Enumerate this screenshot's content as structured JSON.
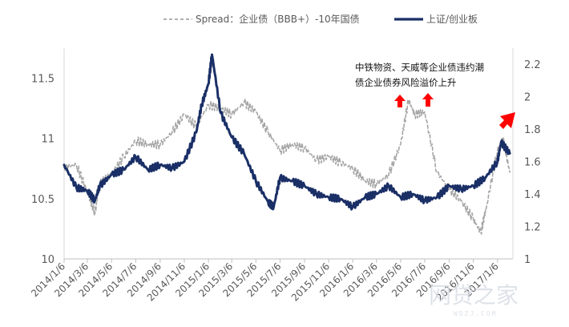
{
  "chart_data": {
    "type": "line",
    "title": "",
    "legend": {
      "placement": "top",
      "entries": [
        {
          "label": "Spread：企业债（BBB+）-10年国债",
          "style": "dashed",
          "color": "#a6a6a6"
        },
        {
          "label": "上证/创业板",
          "style": "solid",
          "color": "#1a2f66"
        }
      ]
    },
    "x_tick_labels": [
      "2014/1/6",
      "2014/3/6",
      "2014/5/6",
      "2014/7/6",
      "2014/9/6",
      "2014/11/6",
      "2015/1/6",
      "2015/3/6",
      "2015/5/6",
      "2015/7/6",
      "2015/9/6",
      "2015/11/6",
      "2016/1/6",
      "2016/3/6",
      "2016/5/6",
      "2016/7/6",
      "2016/9/6",
      "2016/11/6",
      "2017/1/6"
    ],
    "left_axis": {
      "ylim": [
        10,
        11.75
      ],
      "ticks": [
        "10",
        "10.5",
        "11",
        "11.5"
      ]
    },
    "right_axis": {
      "ylim": [
        1,
        2.3
      ],
      "ticks": [
        "1",
        "1.2",
        "1.4",
        "1.6",
        "1.8",
        "2",
        "2.2"
      ]
    },
    "series": [
      {
        "name": "Spread：企业债（BBB+）-10年国债",
        "axis": "left",
        "color": "#a6a6a6",
        "style": "dashed",
        "x": [
          "2014/1/6",
          "2014/2/6",
          "2014/3/6",
          "2014/3/25",
          "2014/4/6",
          "2014/5/6",
          "2014/6/6",
          "2014/7/6",
          "2014/8/6",
          "2014/9/6",
          "2014/10/6",
          "2014/11/6",
          "2014/12/6",
          "2015/1/6",
          "2015/2/6",
          "2015/3/6",
          "2015/4/6",
          "2015/5/6",
          "2015/6/6",
          "2015/7/6",
          "2015/8/6",
          "2015/9/6",
          "2015/10/6",
          "2015/11/6",
          "2015/12/6",
          "2016/1/6",
          "2016/2/6",
          "2016/3/6",
          "2016/4/6",
          "2016/5/6",
          "2016/5/26",
          "2016/6/10",
          "2016/7/6",
          "2016/8/6",
          "2016/9/6",
          "2016/10/6",
          "2016/11/6",
          "2016/11/25",
          "2016/12/10",
          "2017/1/6",
          "2017/1/20",
          "2017/2/6"
        ],
        "values": [
          10.76,
          10.78,
          10.55,
          10.38,
          10.62,
          10.7,
          10.85,
          10.98,
          10.95,
          10.95,
          11.05,
          11.2,
          11.1,
          11.28,
          11.25,
          11.2,
          11.3,
          11.22,
          11.05,
          10.9,
          10.95,
          10.92,
          10.82,
          10.85,
          10.8,
          10.75,
          10.65,
          10.62,
          10.7,
          10.95,
          11.32,
          11.2,
          11.22,
          10.72,
          10.58,
          10.48,
          10.33,
          10.22,
          10.45,
          10.9,
          11.0,
          10.72
        ]
      },
      {
        "name": "上证/创业板",
        "axis": "right",
        "color": "#1a2f66",
        "style": "solid",
        "x": [
          "2014/1/6",
          "2014/2/6",
          "2014/3/6",
          "2014/3/25",
          "2014/4/6",
          "2014/5/6",
          "2014/6/6",
          "2014/7/6",
          "2014/8/6",
          "2014/9/6",
          "2014/10/6",
          "2014/11/6",
          "2014/12/6",
          "2014/12/20",
          "2015/1/6",
          "2015/1/15",
          "2015/2/6",
          "2015/3/6",
          "2015/4/6",
          "2015/5/6",
          "2015/6/6",
          "2015/6/20",
          "2015/7/6",
          "2015/8/6",
          "2015/9/6",
          "2015/10/6",
          "2015/11/6",
          "2015/12/6",
          "2016/1/6",
          "2016/2/6",
          "2016/3/6",
          "2016/4/6",
          "2016/5/6",
          "2016/6/6",
          "2016/7/6",
          "2016/8/6",
          "2016/9/6",
          "2016/10/6",
          "2016/11/6",
          "2016/12/6",
          "2017/1/6",
          "2017/1/15",
          "2017/2/6"
        ],
        "values": [
          1.58,
          1.44,
          1.42,
          1.36,
          1.45,
          1.52,
          1.55,
          1.63,
          1.55,
          1.58,
          1.56,
          1.6,
          1.78,
          1.95,
          2.08,
          2.26,
          1.9,
          1.75,
          1.65,
          1.48,
          1.35,
          1.32,
          1.5,
          1.48,
          1.45,
          1.4,
          1.38,
          1.37,
          1.32,
          1.38,
          1.4,
          1.45,
          1.38,
          1.4,
          1.36,
          1.38,
          1.45,
          1.43,
          1.45,
          1.5,
          1.6,
          1.72,
          1.65
        ]
      }
    ],
    "annotations": [
      {
        "text": "中铁物资、天威等企业债违约潮"
      },
      {
        "text": "债企业债券风险溢价上升"
      }
    ],
    "grid": false,
    "watermark": {
      "text": "网贷之家",
      "sub": "WDZJ.COM"
    }
  }
}
